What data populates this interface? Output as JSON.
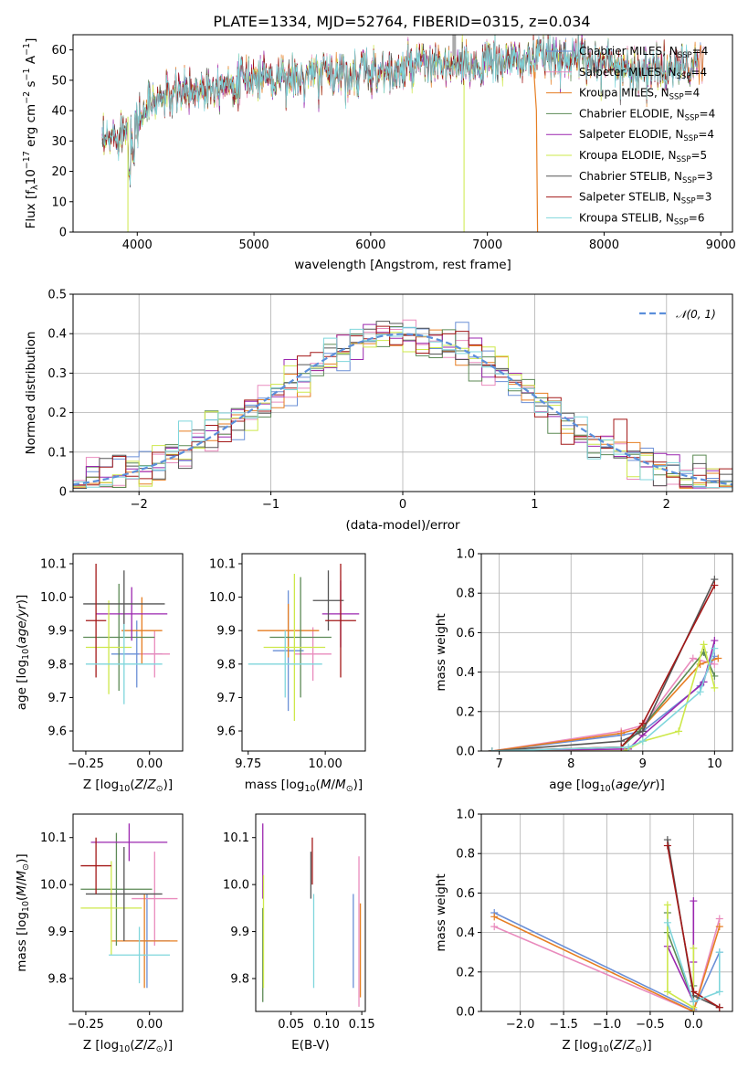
{
  "figure": {
    "title": "PLATE=1334, MJD=52764, FIBERID=0315, z=0.034"
  },
  "colors": {
    "Chabrier MILES": "#6a8fd6",
    "Salpeter MILES": "#e98bbd",
    "Kroupa MILES": "#e67e22",
    "Chabrier ELODIE": "#5c8a55",
    "Salpeter ELODIE": "#9b27af",
    "Kroupa ELODIE": "#cde84a",
    "Chabrier STELIB": "#555555",
    "Salpeter STELIB": "#a31818",
    "Kroupa STELIB": "#7fd6dc"
  },
  "chart_data": [
    {
      "id": "spectrum",
      "type": "line",
      "title": "PLATE=1334, MJD=52764, FIBERID=0315, z=0.034",
      "xlabel": "wavelength [Angstrom, rest frame]",
      "ylabel": "Flux [f_λ10^-17 erg cm^-2 s^-1 A^-1]",
      "xlim": [
        3450,
        9100
      ],
      "ylim": [
        0,
        65
      ],
      "xticks": [
        4000,
        5000,
        6000,
        7000,
        8000,
        9000
      ],
      "yticks": [
        0,
        10,
        20,
        30,
        40,
        50,
        60
      ],
      "grid": false,
      "legend_position": "right",
      "legend": [
        "Chabrier MILES, N_SSP=4",
        "Salpeter MILES, N_SSP=4",
        "Kroupa MILES, N_SSP=4",
        "Chabrier ELODIE, N_SSP=4",
        "Salpeter ELODIE, N_SSP=4",
        "Kroupa ELODIE, N_SSP=5",
        "Chabrier STELIB, N_SSP=3",
        "Salpeter STELIB, N_SSP=3",
        "Kroupa STELIB, N_SSP=6"
      ],
      "continuum": {
        "x": [
          3700,
          3800,
          3900,
          4000,
          4100,
          4200,
          4400,
          4600,
          4800,
          5000,
          5200,
          5400,
          5600,
          5800,
          6000,
          6200,
          6400,
          6600,
          6800,
          7000,
          7200,
          7400,
          7600,
          7800,
          8000,
          8200,
          8400,
          8600,
          8800
        ],
        "y": [
          28,
          32,
          34,
          36,
          42,
          44,
          46,
          48,
          50,
          51,
          52,
          50,
          53,
          52,
          54,
          52,
          55,
          55,
          54,
          56,
          56,
          57,
          58,
          57,
          56,
          54,
          53,
          54,
          55
        ]
      }
    },
    {
      "id": "residuals",
      "type": "line",
      "xlabel": "(data-model)/error",
      "ylabel": "Normed distribution",
      "xlim": [
        -2.5,
        2.5
      ],
      "ylim": [
        0,
        0.5
      ],
      "xticks": [
        -2,
        -1,
        0,
        1,
        2
      ],
      "yticks": [
        0.0,
        0.1,
        0.2,
        0.3,
        0.4,
        0.5
      ],
      "grid": true,
      "legend_position": "top-right",
      "legend": [
        "𝒩(0, 1)"
      ],
      "bin_width": 0.1,
      "histogram_shape": "normal"
    },
    {
      "id": "age-vs-Z",
      "type": "scatter",
      "xlabel": "Z [log10(Z/Z⊙)]",
      "ylabel": "age [log10(age/yr)]",
      "xlim": [
        -0.3,
        0.13
      ],
      "ylim": [
        9.54,
        10.13
      ],
      "xticks": [
        -0.25,
        0.0
      ],
      "yticks": [
        9.6,
        9.7,
        9.8,
        9.9,
        10.0,
        10.1
      ],
      "points": [
        {
          "x": -0.05,
          "y": 9.83,
          "xerr": 0.1,
          "yerr": 0.1,
          "c": "#6a8fd6"
        },
        {
          "x": 0.02,
          "y": 9.83,
          "xerr": 0.06,
          "yerr": 0.07,
          "c": "#e98bbd"
        },
        {
          "x": -0.03,
          "y": 9.9,
          "xerr": 0.08,
          "yerr": 0.1,
          "c": "#e67e22"
        },
        {
          "x": -0.12,
          "y": 9.88,
          "xerr": 0.14,
          "yerr": 0.16,
          "c": "#5c8a55"
        },
        {
          "x": -0.07,
          "y": 9.95,
          "xerr": 0.14,
          "yerr": 0.08,
          "c": "#9b27af"
        },
        {
          "x": -0.16,
          "y": 9.85,
          "xerr": 0.09,
          "yerr": 0.14,
          "c": "#cde84a"
        },
        {
          "x": -0.1,
          "y": 9.98,
          "xerr": 0.16,
          "yerr": 0.1,
          "c": "#555555"
        },
        {
          "x": -0.21,
          "y": 9.93,
          "xerr": 0.04,
          "yerr": 0.17,
          "c": "#a31818"
        },
        {
          "x": -0.1,
          "y": 9.8,
          "xerr": 0.15,
          "yerr": 0.12,
          "c": "#7fd6dc"
        }
      ]
    },
    {
      "id": "age-vs-mass",
      "type": "scatter",
      "xlabel": "mass [log10(M/M⊙)]",
      "ylabel": "",
      "xlim": [
        9.73,
        10.13
      ],
      "ylim": [
        9.54,
        10.13
      ],
      "xticks": [
        9.75,
        10.0
      ],
      "yticks": [
        9.6,
        9.7,
        9.8,
        9.9,
        10.0,
        10.1
      ],
      "points": [
        {
          "x": 9.88,
          "y": 9.84,
          "xerr": 0.05,
          "yerr": 0.18,
          "c": "#6a8fd6"
        },
        {
          "x": 9.96,
          "y": 9.83,
          "xerr": 0.06,
          "yerr": 0.08,
          "c": "#e98bbd"
        },
        {
          "x": 9.88,
          "y": 9.9,
          "xerr": 0.1,
          "yerr": 0.08,
          "c": "#e67e22"
        },
        {
          "x": 9.92,
          "y": 9.88,
          "xerr": 0.1,
          "yerr": 0.18,
          "c": "#5c8a55"
        },
        {
          "x": 10.05,
          "y": 9.95,
          "xerr": 0.06,
          "yerr": 0.1,
          "c": "#9b27af"
        },
        {
          "x": 9.9,
          "y": 9.85,
          "xerr": 0.1,
          "yerr": 0.22,
          "c": "#cde84a"
        },
        {
          "x": 10.01,
          "y": 9.99,
          "xerr": 0.05,
          "yerr": 0.09,
          "c": "#555555"
        },
        {
          "x": 10.05,
          "y": 9.93,
          "xerr": 0.05,
          "yerr": 0.17,
          "c": "#a31818"
        },
        {
          "x": 9.87,
          "y": 9.8,
          "xerr": 0.12,
          "yerr": 0.1,
          "c": "#7fd6dc"
        }
      ]
    },
    {
      "id": "mass-weight-vs-age",
      "type": "line",
      "xlabel": "age [log10(age/yr)]",
      "ylabel": "mass weight",
      "xlim": [
        6.75,
        10.25
      ],
      "ylim": [
        0,
        1
      ],
      "xticks": [
        7,
        8,
        9,
        10
      ],
      "yticks": [
        0.0,
        0.2,
        0.4,
        0.6,
        0.8,
        1.0
      ],
      "grid": true,
      "series": [
        {
          "c": "#6a8fd6",
          "x": [
            6.9,
            8.7,
            9.0,
            9.8,
            10.0
          ],
          "y": [
            0.0,
            0.08,
            0.1,
            0.33,
            0.48
          ]
        },
        {
          "c": "#e98bbd",
          "x": [
            6.9,
            8.7,
            9.0,
            9.7,
            10.0
          ],
          "y": [
            0.0,
            0.1,
            0.13,
            0.47,
            0.44
          ]
        },
        {
          "c": "#e67e22",
          "x": [
            6.9,
            8.7,
            9.0,
            9.8,
            10.05
          ],
          "y": [
            0.0,
            0.09,
            0.12,
            0.44,
            0.47
          ]
        },
        {
          "c": "#5c8a55",
          "x": [
            6.9,
            8.7,
            8.95,
            9.85,
            10.0
          ],
          "y": [
            0.0,
            0.02,
            0.1,
            0.5,
            0.38
          ]
        },
        {
          "c": "#9b27af",
          "x": [
            6.9,
            8.8,
            9.0,
            9.85,
            10.0
          ],
          "y": [
            0.0,
            0.01,
            0.08,
            0.35,
            0.56
          ]
        },
        {
          "c": "#cde84a",
          "x": [
            6.9,
            8.75,
            9.0,
            9.5,
            9.85,
            10.0
          ],
          "y": [
            0.0,
            0.0,
            0.05,
            0.1,
            0.54,
            0.32
          ]
        },
        {
          "c": "#555555",
          "x": [
            6.9,
            8.7,
            9.0,
            10.0
          ],
          "y": [
            0.0,
            0.05,
            0.1,
            0.87
          ]
        },
        {
          "c": "#a31818",
          "x": [
            6.9,
            8.7,
            9.0,
            10.0
          ],
          "y": [
            0.0,
            0.02,
            0.14,
            0.84
          ]
        },
        {
          "c": "#7fd6dc",
          "x": [
            6.9,
            8.8,
            9.0,
            9.8,
            10.0
          ],
          "y": [
            0.0,
            0.02,
            0.05,
            0.3,
            0.52
          ]
        }
      ]
    },
    {
      "id": "mass-vs-Z",
      "type": "scatter",
      "xlabel": "Z [log10(Z/Z⊙)]",
      "ylabel": "mass [log10(M/M⊙)]",
      "xlim": [
        -0.3,
        0.13
      ],
      "ylim": [
        9.73,
        10.15
      ],
      "xticks": [
        -0.25,
        0.0
      ],
      "yticks": [
        9.8,
        9.9,
        10.0,
        10.1
      ],
      "points": [
        {
          "x": -0.01,
          "y": 9.88,
          "xerr": 0.09,
          "yerr": 0.1,
          "c": "#6a8fd6"
        },
        {
          "x": 0.02,
          "y": 9.97,
          "xerr": 0.09,
          "yerr": 0.1,
          "c": "#e98bbd"
        },
        {
          "x": -0.02,
          "y": 9.88,
          "xerr": 0.13,
          "yerr": 0.1,
          "c": "#e67e22"
        },
        {
          "x": -0.13,
          "y": 9.99,
          "xerr": 0.14,
          "yerr": 0.12,
          "c": "#5c8a55"
        },
        {
          "x": -0.08,
          "y": 10.09,
          "xerr": 0.15,
          "yerr": 0.04,
          "c": "#9b27af"
        },
        {
          "x": -0.15,
          "y": 9.95,
          "xerr": 0.12,
          "yerr": 0.1,
          "c": "#cde84a"
        },
        {
          "x": -0.1,
          "y": 9.98,
          "xerr": 0.15,
          "yerr": 0.1,
          "c": "#555555"
        },
        {
          "x": -0.21,
          "y": 10.04,
          "xerr": 0.06,
          "yerr": 0.06,
          "c": "#a31818"
        },
        {
          "x": -0.04,
          "y": 9.85,
          "xerr": 0.12,
          "yerr": 0.06,
          "c": "#7fd6dc"
        }
      ]
    },
    {
      "id": "mass-vs-EBV",
      "type": "scatter",
      "xlabel": "E(B-V)",
      "ylabel": "",
      "xlim": [
        0.0,
        0.155
      ],
      "ylim": [
        9.73,
        10.15
      ],
      "xticks": [
        0.05,
        0.1,
        0.15
      ],
      "yticks": [
        9.8,
        9.9,
        10.0,
        10.1
      ],
      "points": [
        {
          "x": 0.138,
          "y": 9.88,
          "yerr": 0.1,
          "c": "#6a8fd6"
        },
        {
          "x": 0.146,
          "y": 9.9,
          "yerr": 0.16,
          "c": "#e98bbd"
        },
        {
          "x": 0.148,
          "y": 9.86,
          "yerr": 0.1,
          "c": "#e67e22"
        },
        {
          "x": 0.01,
          "y": 9.85,
          "yerr": 0.1,
          "c": "#5c8a55"
        },
        {
          "x": 0.01,
          "y": 10.05,
          "yerr": 0.08,
          "c": "#9b27af"
        },
        {
          "x": 0.011,
          "y": 9.9,
          "yerr": 0.12,
          "c": "#cde84a"
        },
        {
          "x": 0.078,
          "y": 10.02,
          "yerr": 0.05,
          "c": "#555555"
        },
        {
          "x": 0.08,
          "y": 10.05,
          "yerr": 0.05,
          "c": "#a31818"
        },
        {
          "x": 0.082,
          "y": 9.88,
          "yerr": 0.1,
          "c": "#7fd6dc"
        }
      ]
    },
    {
      "id": "mass-weight-vs-Z",
      "type": "line",
      "xlabel": "Z [log10(Z/Z⊙)]",
      "ylabel": "mass weight",
      "xlim": [
        -2.45,
        0.45
      ],
      "ylim": [
        0,
        1
      ],
      "xticks": [
        -2.0,
        -1.5,
        -1.0,
        -0.5,
        0.0
      ],
      "yticks": [
        0.0,
        0.2,
        0.4,
        0.6,
        0.8,
        1.0
      ],
      "grid": true,
      "series": [
        {
          "c": "#6a8fd6",
          "x": [
            -2.3,
            0.0,
            0.3
          ],
          "y": [
            0.5,
            0.01,
            0.3
          ]
        },
        {
          "c": "#e98bbd",
          "x": [
            -2.3,
            0.0,
            0.3
          ],
          "y": [
            0.43,
            0.0,
            0.47
          ]
        },
        {
          "c": "#e67e22",
          "x": [
            -2.3,
            0.0,
            0.3
          ],
          "y": [
            0.48,
            0.0,
            0.43
          ]
        },
        {
          "c": "#5c8a55",
          "x": [
            -0.3,
            -0.3,
            0.0,
            0.0
          ],
          "y": [
            0.5,
            0.4,
            0.05,
            0.13
          ]
        },
        {
          "c": "#9b27af",
          "x": [
            -0.3,
            0.0,
            0.0,
            0.0
          ],
          "y": [
            0.33,
            0.05,
            0.25,
            0.56
          ]
        },
        {
          "c": "#cde84a",
          "x": [
            -0.3,
            -0.3,
            0.0,
            0.0
          ],
          "y": [
            0.54,
            0.1,
            0.02,
            0.32
          ]
        },
        {
          "c": "#555555",
          "x": [
            -0.3,
            0.0,
            0.3
          ],
          "y": [
            0.87,
            0.08,
            0.02
          ]
        },
        {
          "c": "#a31818",
          "x": [
            -0.3,
            0.0,
            0.3
          ],
          "y": [
            0.84,
            0.1,
            0.02
          ]
        },
        {
          "c": "#7fd6dc",
          "x": [
            -0.3,
            0.0,
            0.3,
            0.3
          ],
          "y": [
            0.45,
            0.05,
            0.1,
            0.3
          ]
        }
      ]
    }
  ]
}
